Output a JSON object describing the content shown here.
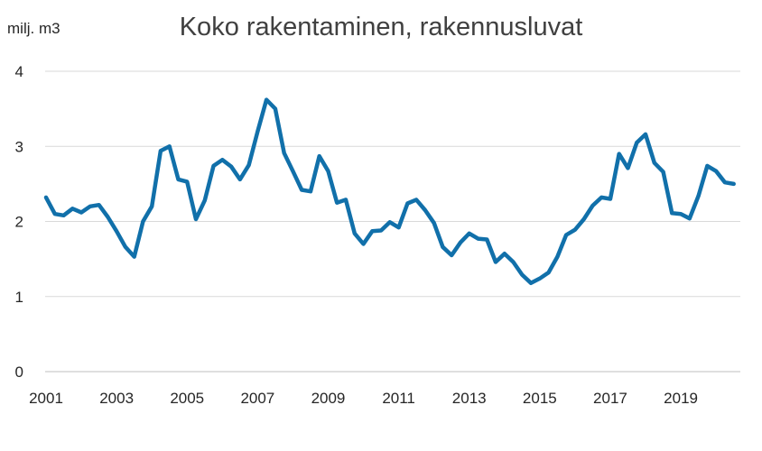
{
  "chart_data": {
    "type": "line",
    "title": "Koko rakentaminen, rakennusluvat",
    "ylabel": "milj. m3",
    "xlabel": "",
    "ylim": [
      0,
      4
    ],
    "yticks": [
      "0",
      "1",
      "2",
      "3",
      "4"
    ],
    "xticks": [
      "2001",
      "2003",
      "2005",
      "2007",
      "2009",
      "2011",
      "2013",
      "2015",
      "2017",
      "2019"
    ],
    "grid": true,
    "line_color": "#1170AA",
    "x_start": 2001.0,
    "x_step": 0.25,
    "values": [
      2.32,
      2.1,
      2.08,
      2.17,
      2.12,
      2.2,
      2.22,
      2.06,
      1.87,
      1.66,
      1.53,
      2.0,
      2.2,
      2.94,
      3.0,
      2.56,
      2.53,
      2.03,
      2.28,
      2.74,
      2.82,
      2.73,
      2.56,
      2.75,
      3.2,
      3.62,
      3.5,
      2.91,
      2.67,
      2.42,
      2.4,
      2.87,
      2.67,
      2.25,
      2.29,
      1.84,
      1.7,
      1.87,
      1.88,
      1.99,
      1.92,
      2.24,
      2.29,
      2.15,
      1.98,
      1.66,
      1.55,
      1.72,
      1.84,
      1.77,
      1.76,
      1.46,
      1.57,
      1.46,
      1.29,
      1.18,
      1.24,
      1.32,
      1.53,
      1.82,
      1.89,
      2.03,
      2.21,
      2.32,
      2.3,
      2.9,
      2.71,
      3.05,
      3.16,
      2.78,
      2.66,
      2.11,
      2.1,
      2.04,
      2.34,
      2.74,
      2.67,
      2.52,
      2.5
    ]
  }
}
